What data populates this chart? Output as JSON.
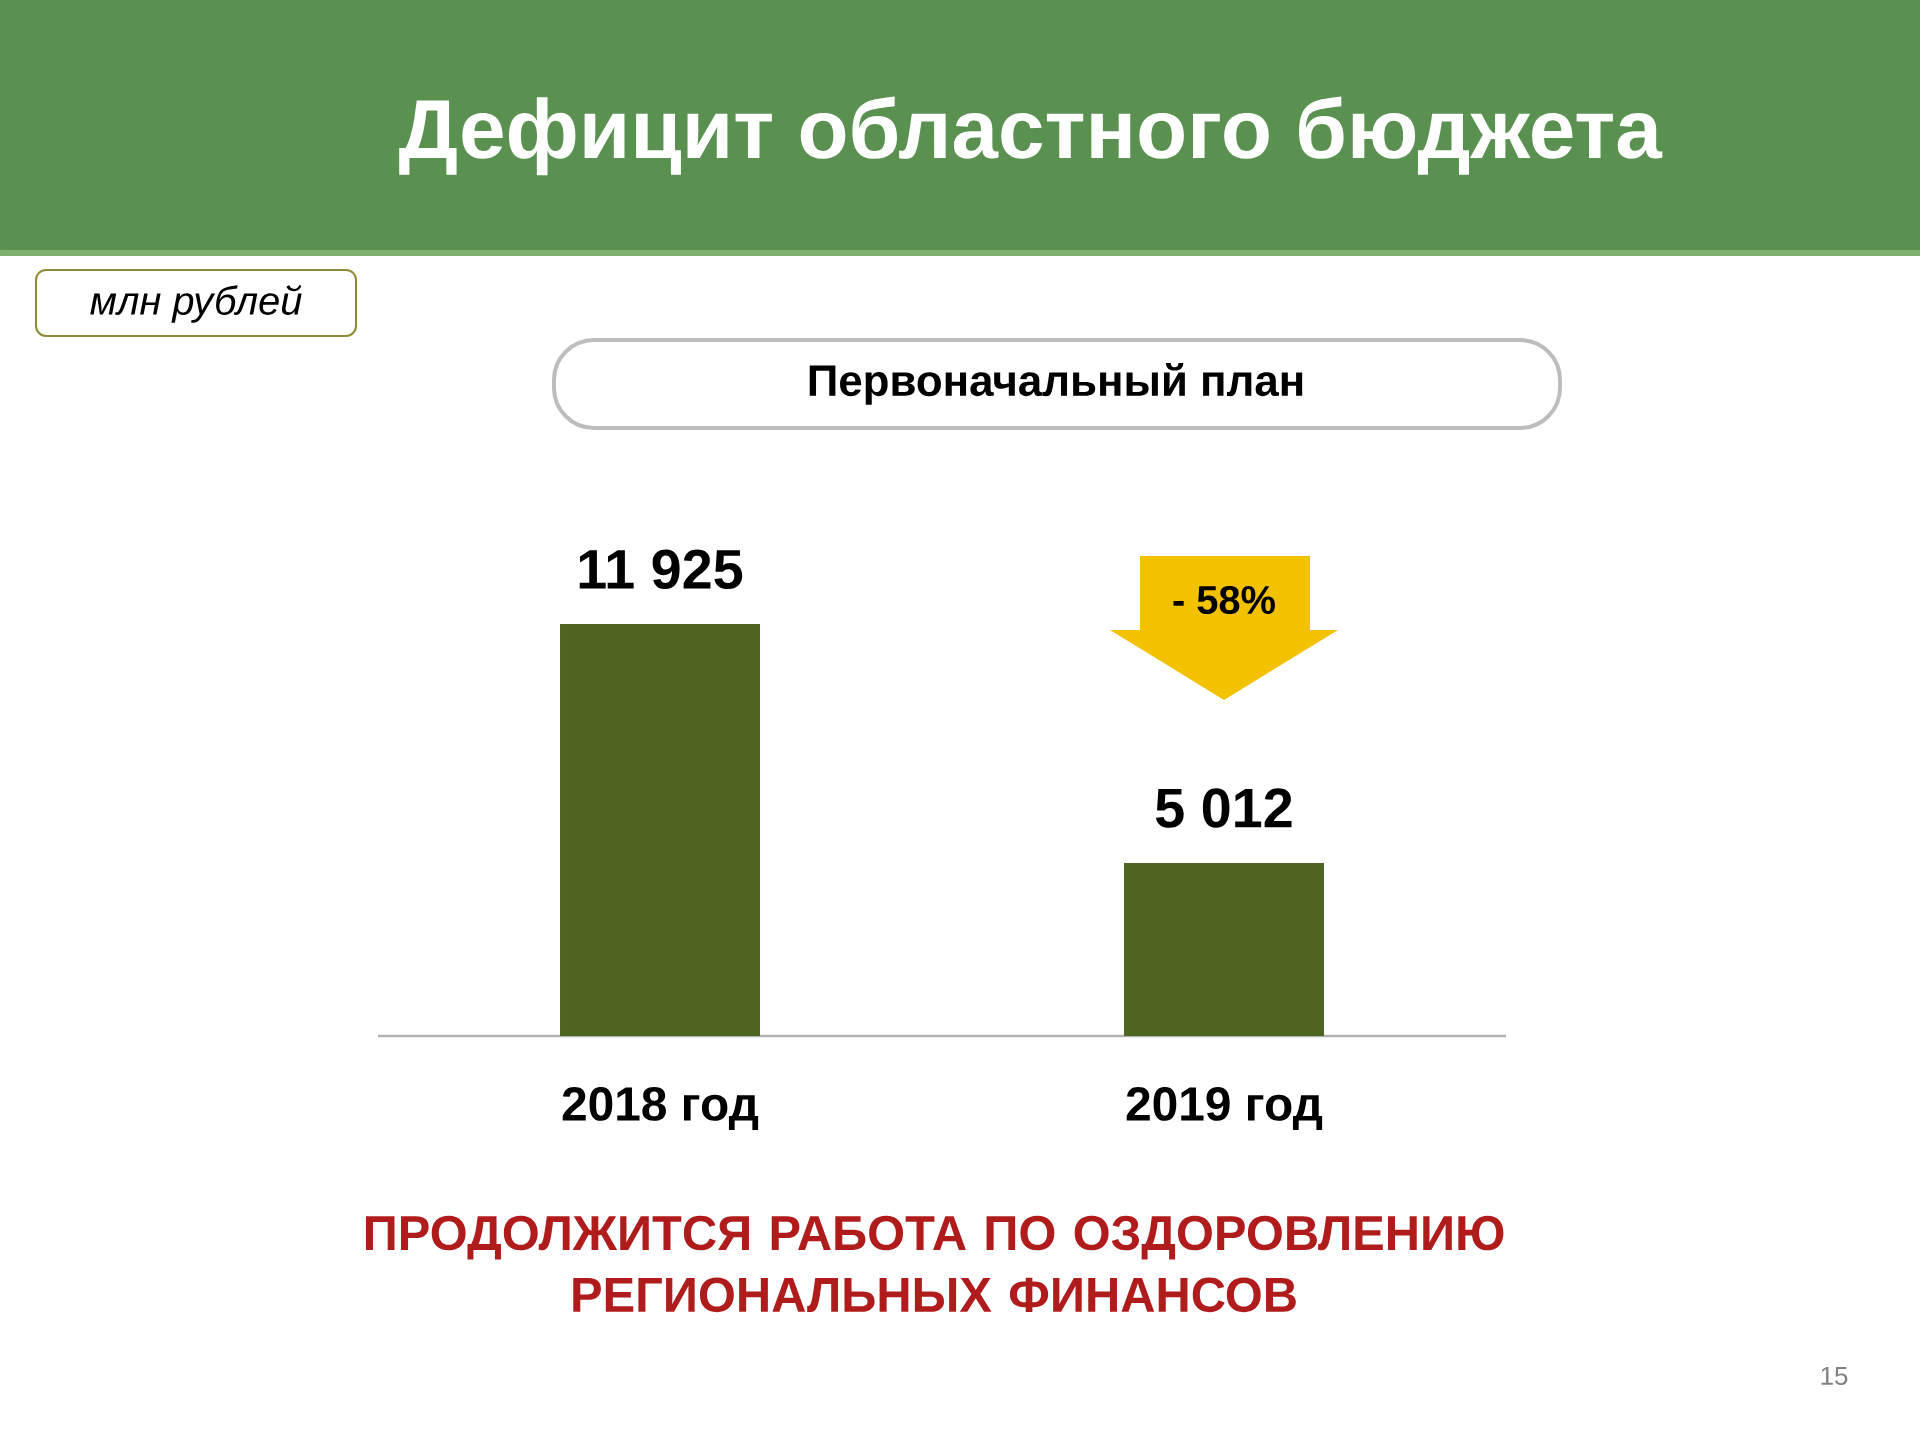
{
  "chart_data": {
    "type": "bar",
    "title": "Дефицит областного бюджета",
    "subtitle": "Первоначальный план",
    "categories": [
      "2018 год",
      "2019 год"
    ],
    "values": [
      11925,
      5012
    ],
    "value_labels": [
      "11 925",
      "5 012"
    ],
    "color": "#4e6420",
    "annotations": [
      "млн рублей",
      "- 58%",
      "ПРОДОЛЖИТСЯ РАБОТА ПО ОЗДОРОВЛЕНИЮ РЕГИОНАЛЬНЫХ ФИНАНСОВ",
      "15"
    ]
  }
}
